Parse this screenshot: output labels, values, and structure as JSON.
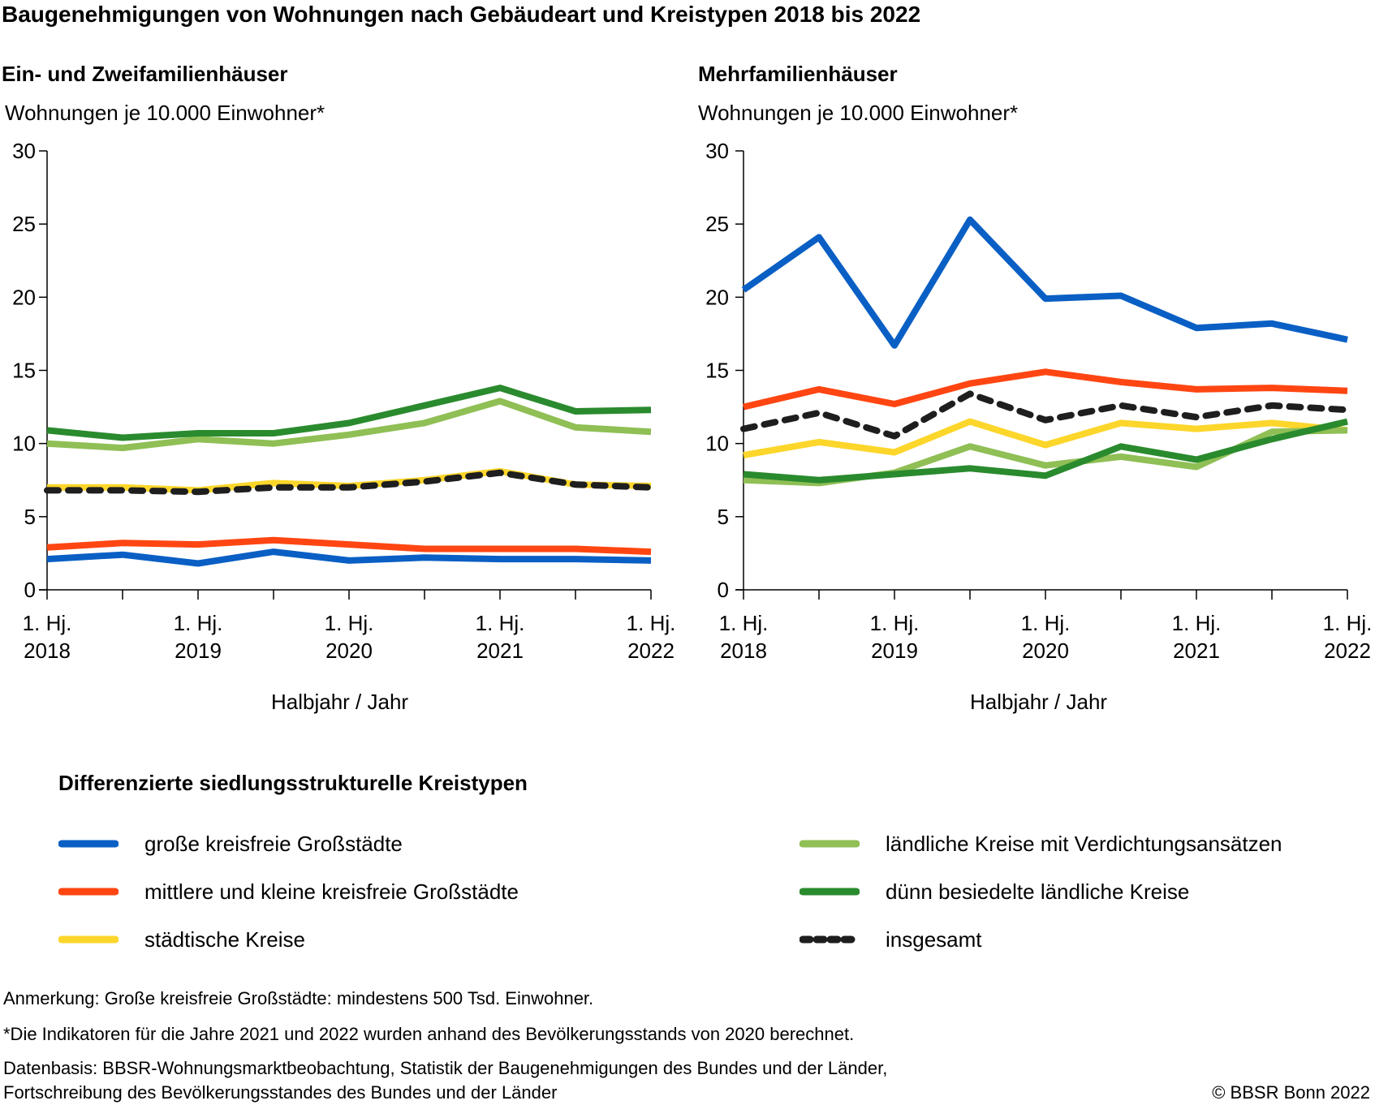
{
  "title": "Baugenehmigungen von Wohnungen nach Gebäudeart und Kreistypen 2018 bis 2022",
  "colors": {
    "grosse_kreisfreie": "#0a5fc4",
    "mittlere_kleine": "#ff4612",
    "staedtische": "#fcd62a",
    "laendliche_verdichtung": "#8fbf55",
    "duenn_besiedelt": "#2a8a2e",
    "insgesamt": "#1e1e1e"
  },
  "chart_data": [
    {
      "type": "line",
      "title": "Ein- und Zweifamilienhäuser",
      "ylabel": "Wohnungen je 10.000 Einwohner*",
      "xlabel": "Halbjahr / Jahr",
      "ylim": [
        0,
        30
      ],
      "yticks": [
        "0",
        "5",
        "10",
        "15",
        "20",
        "25",
        "30"
      ],
      "x": [
        "1. Hj. 2018",
        "2. Hj. 2018",
        "1. Hj. 2019",
        "2. Hj. 2019",
        "1. Hj. 2020",
        "2. Hj. 2020",
        "1. Hj. 2021",
        "2. Hj. 2021",
        "1. Hj. 2022"
      ],
      "xtick_labels": [
        {
          "line1": "1. Hj.",
          "line2": "2018"
        },
        {
          "line1": "1. Hj.",
          "line2": "2019"
        },
        {
          "line1": "1. Hj.",
          "line2": "2020"
        },
        {
          "line1": "1. Hj.",
          "line2": "2021"
        },
        {
          "line1": "1. Hj.",
          "line2": "2022"
        }
      ],
      "grid": false,
      "series": [
        {
          "key": "grosse_kreisfreie",
          "name": "große kreisfreie Großstädte",
          "values": [
            2.1,
            2.4,
            1.8,
            2.6,
            2.0,
            2.2,
            2.1,
            2.1,
            2.0
          ]
        },
        {
          "key": "mittlere_kleine",
          "name": "mittlere und kleine kreisfreie Großstädte",
          "values": [
            2.9,
            3.2,
            3.1,
            3.4,
            3.1,
            2.8,
            2.8,
            2.8,
            2.6
          ]
        },
        {
          "key": "laendliche_verdichtung",
          "name": "ländliche Kreise mit Verdichtungsansätzen",
          "values": [
            10.0,
            9.7,
            10.3,
            10.0,
            10.6,
            11.4,
            12.9,
            11.1,
            10.8
          ]
        },
        {
          "key": "duenn_besiedelt",
          "name": "dünn besiedelte ländliche Kreise",
          "values": [
            10.9,
            10.4,
            10.7,
            10.7,
            11.4,
            12.6,
            13.8,
            12.2,
            12.3
          ]
        },
        {
          "key": "staedtische",
          "name": "städtische Kreise",
          "values": [
            7.0,
            7.0,
            6.8,
            7.3,
            7.1,
            7.5,
            8.1,
            7.2,
            7.1
          ]
        },
        {
          "key": "insgesamt",
          "name": "insgesamt",
          "dashed": true,
          "values": [
            6.8,
            6.8,
            6.7,
            7.0,
            7.0,
            7.4,
            8.0,
            7.2,
            7.0
          ]
        }
      ]
    },
    {
      "type": "line",
      "title": "Mehrfamilienhäuser",
      "ylabel": "Wohnungen je 10.000 Einwohner*",
      "xlabel": "Halbjahr / Jahr",
      "ylim": [
        0,
        30
      ],
      "yticks": [
        "0",
        "5",
        "10",
        "15",
        "20",
        "25",
        "30"
      ],
      "x": [
        "1. Hj. 2018",
        "2. Hj. 2018",
        "1. Hj. 2019",
        "2. Hj. 2019",
        "1. Hj. 2020",
        "2. Hj. 2020",
        "1. Hj. 2021",
        "2. Hj. 2021",
        "1. Hj. 2022"
      ],
      "xtick_labels": [
        {
          "line1": "1. Hj.",
          "line2": "2018"
        },
        {
          "line1": "1. Hj.",
          "line2": "2019"
        },
        {
          "line1": "1. Hj.",
          "line2": "2020"
        },
        {
          "line1": "1. Hj.",
          "line2": "2021"
        },
        {
          "line1": "1. Hj.",
          "line2": "2022"
        }
      ],
      "grid": false,
      "series": [
        {
          "key": "grosse_kreisfreie",
          "name": "große kreisfreie Großstädte",
          "values": [
            20.5,
            24.1,
            16.7,
            25.3,
            19.9,
            20.1,
            17.9,
            18.2,
            17.1
          ]
        },
        {
          "key": "mittlere_kleine",
          "name": "mittlere und kleine kreisfreie Großstädte",
          "values": [
            12.5,
            13.7,
            12.7,
            14.1,
            14.9,
            14.2,
            13.7,
            13.8,
            13.6
          ]
        },
        {
          "key": "staedtische",
          "name": "städtische Kreise",
          "values": [
            9.2,
            10.1,
            9.4,
            11.5,
            9.9,
            11.4,
            11.0,
            11.4,
            10.9
          ]
        },
        {
          "key": "laendliche_verdichtung",
          "name": "ländliche Kreise mit Verdichtungsansätzen",
          "values": [
            7.5,
            7.3,
            8.0,
            9.8,
            8.5,
            9.1,
            8.4,
            10.8,
            10.9
          ]
        },
        {
          "key": "duenn_besiedelt",
          "name": "dünn besiedelte ländliche Kreise",
          "values": [
            7.9,
            7.5,
            7.9,
            8.3,
            7.8,
            9.8,
            8.9,
            10.3,
            11.5
          ]
        },
        {
          "key": "insgesamt",
          "name": "insgesamt",
          "dashed": true,
          "values": [
            11.0,
            12.1,
            10.5,
            13.4,
            11.6,
            12.6,
            11.8,
            12.6,
            12.3
          ]
        }
      ]
    }
  ],
  "legend": {
    "title": "Differenzierte siedlungsstrukturelle Kreistypen",
    "items": [
      {
        "key": "grosse_kreisfreie",
        "label": "große kreisfreie Großstädte"
      },
      {
        "key": "mittlere_kleine",
        "label": "mittlere und kleine kreisfreie Großstädte"
      },
      {
        "key": "staedtische",
        "label": "städtische Kreise"
      },
      {
        "key": "laendliche_verdichtung",
        "label": "ländliche Kreise mit Verdichtungsansätzen"
      },
      {
        "key": "duenn_besiedelt",
        "label": "dünn besiedelte ländliche Kreise"
      },
      {
        "key": "insgesamt",
        "label": "insgesamt",
        "dashed": true
      }
    ]
  },
  "notes": {
    "anmerkung": "Anmerkung: Große kreisfreie Großstädte: mindestens 500 Tsd. Einwohner.",
    "indikatoren": "*Die Indikatoren für die Jahre 2021 und 2022 wurden anhand des Bevölkerungsstands von 2020 berechnet.",
    "datenbasis_1": "Datenbasis: BBSR-Wohnungsmarktbeobachtung, Statistik der Baugenehmigungen des Bundes und der Länder,",
    "datenbasis_2": "Fortschreibung des Bevölkerungsstandes des Bundes und der Länder",
    "copyright": "© BBSR Bonn 2022"
  }
}
